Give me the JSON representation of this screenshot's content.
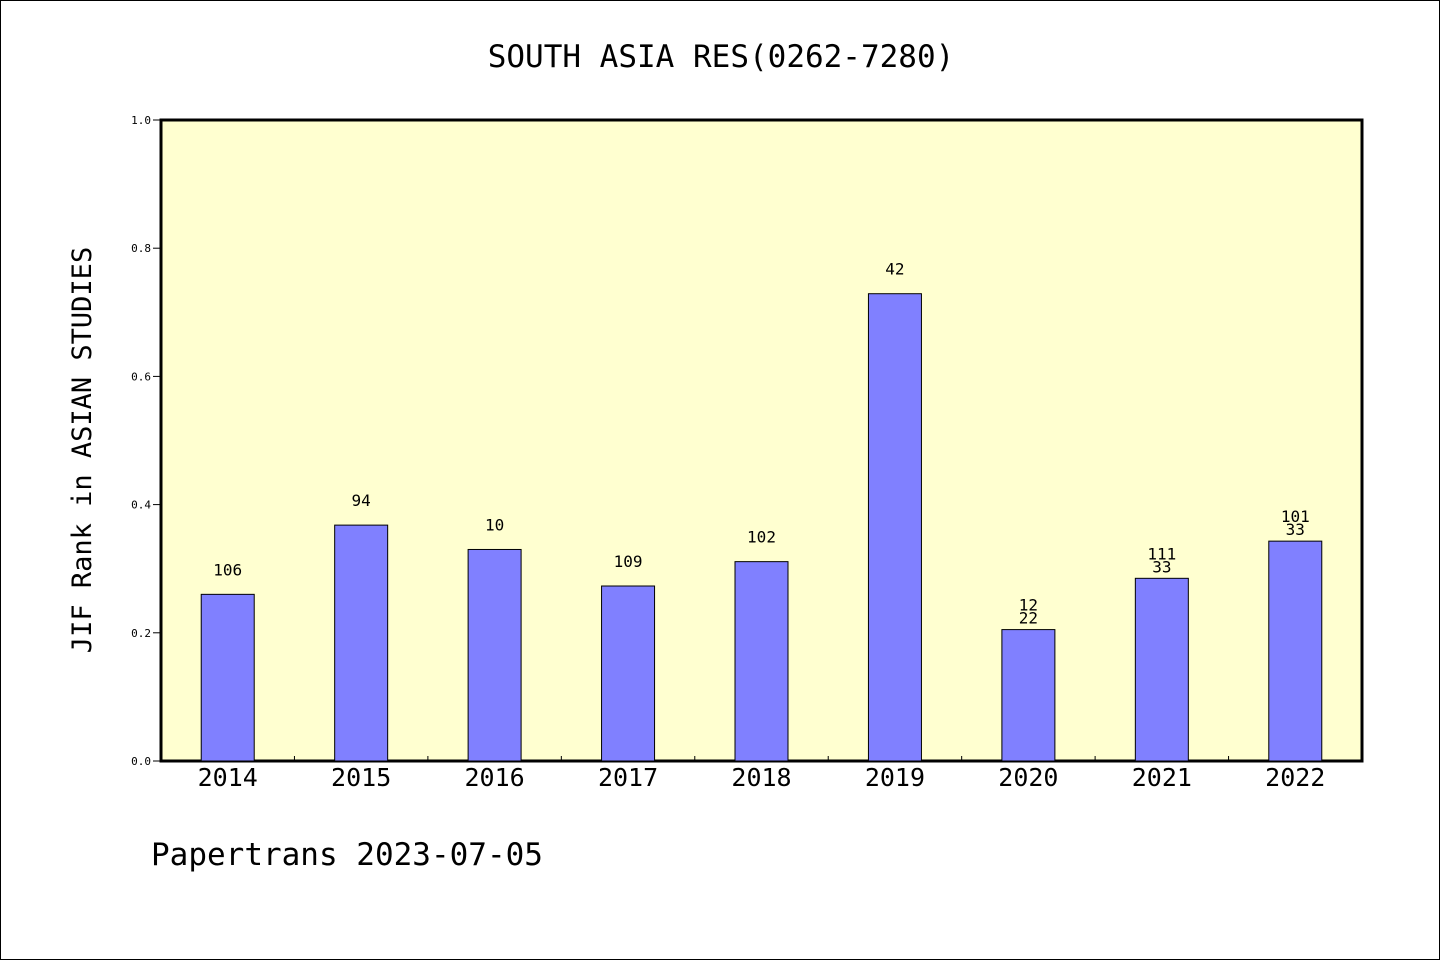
{
  "chart_data": {
    "type": "bar",
    "title": "SOUTH ASIA RES(0262-7280)",
    "ylabel": "JIF Rank in ASIAN STUDIES",
    "xlabel": "",
    "ylim": [
      0,
      1.0
    ],
    "yticks": [
      "0.0",
      "0.2",
      "0.4",
      "0.6",
      "0.8",
      "1.0"
    ],
    "categories": [
      "2014",
      "2015",
      "2016",
      "2017",
      "2018",
      "2019",
      "2020",
      "2021",
      "2022"
    ],
    "values": [
      0.26,
      0.368,
      0.33,
      0.273,
      0.311,
      0.729,
      0.205,
      0.285,
      0.343
    ],
    "annotations": [
      [
        "106"
      ],
      [
        "94"
      ],
      [
        "10"
      ],
      [
        "109"
      ],
      [
        "102"
      ],
      [
        "42"
      ],
      [
        "12",
        "22"
      ],
      [
        "111",
        "33"
      ],
      [
        "101",
        "33"
      ]
    ],
    "colors": {
      "plot_background": "#ffffd0",
      "bar_fill": "#8080ff",
      "bar_stroke": "#000000"
    },
    "grid": false
  },
  "footer": {
    "text": "Papertrans 2023-07-05"
  }
}
